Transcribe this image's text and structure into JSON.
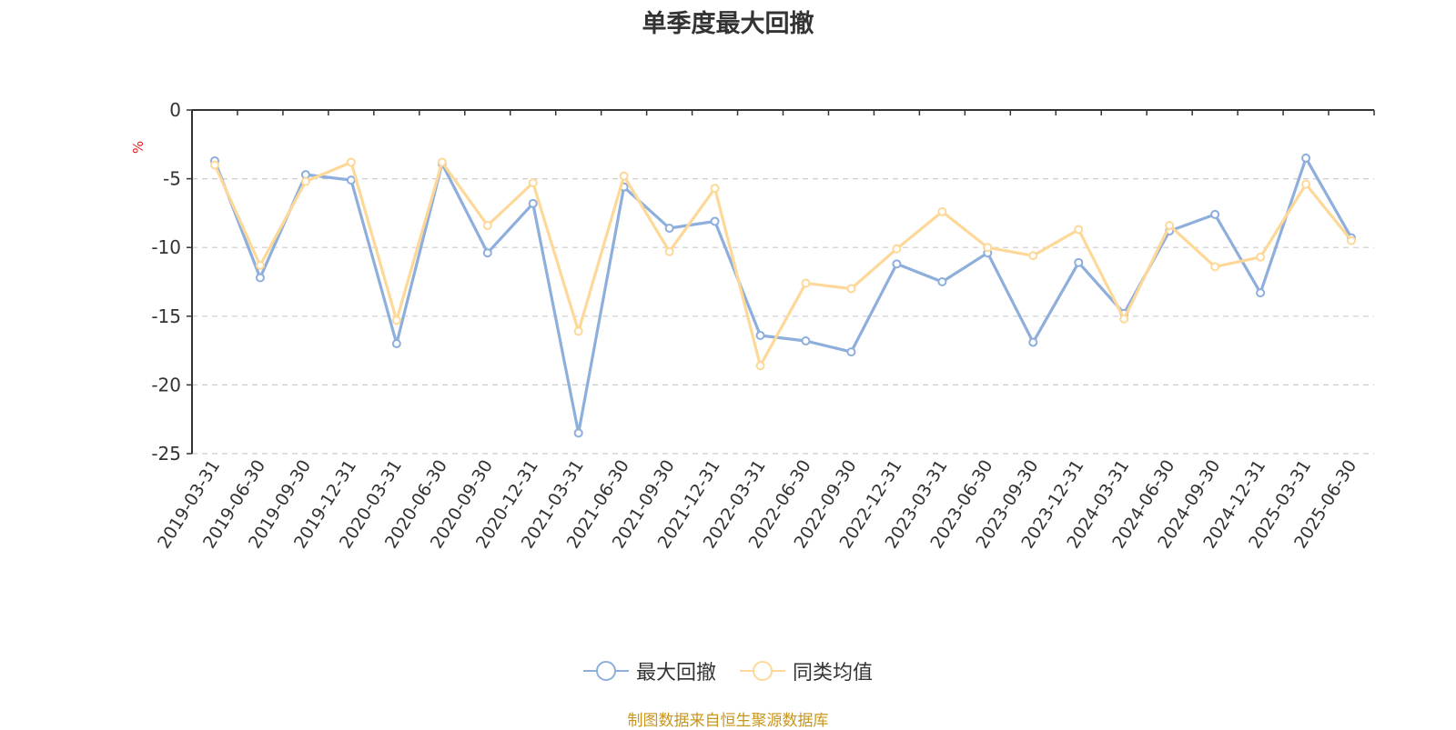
{
  "chart_data": {
    "type": "line",
    "title": "单季度最大回撤",
    "ylabel": "%",
    "xlabel": "",
    "ylim": [
      -25,
      0
    ],
    "yticks": [
      0,
      -5,
      -10,
      -15,
      -20,
      -25
    ],
    "grid": true,
    "legend_position": "bottom",
    "categories": [
      "2019-03-31",
      "2019-06-30",
      "2019-09-30",
      "2019-12-31",
      "2020-03-31",
      "2020-06-30",
      "2020-09-30",
      "2020-12-31",
      "2021-03-31",
      "2021-06-30",
      "2021-09-30",
      "2021-12-31",
      "2022-03-31",
      "2022-06-30",
      "2022-09-30",
      "2022-12-31",
      "2023-03-31",
      "2023-06-30",
      "2023-09-30",
      "2023-12-31",
      "2024-03-31",
      "2024-06-30",
      "2024-09-30",
      "2024-12-31",
      "2025-03-31",
      "2025-06-30"
    ],
    "series": [
      {
        "name": "最大回撤",
        "color": "#8eaedc",
        "values": [
          -3.7,
          -12.2,
          -4.7,
          -5.1,
          -17.0,
          -3.9,
          -10.4,
          -6.8,
          -23.5,
          -5.6,
          -8.6,
          -8.1,
          -16.4,
          -16.8,
          -17.6,
          -11.2,
          -12.5,
          -10.4,
          -16.9,
          -11.1,
          -14.8,
          -8.8,
          -7.6,
          -13.3,
          -3.5,
          -9.3
        ]
      },
      {
        "name": "同类均值",
        "color": "#fdd898",
        "values": [
          -4.0,
          -11.3,
          -5.2,
          -3.8,
          -15.3,
          -3.8,
          -8.4,
          -5.3,
          -16.1,
          -4.8,
          -10.3,
          -5.7,
          -18.6,
          -12.6,
          -13.0,
          -10.1,
          -7.4,
          -10.0,
          -10.6,
          -8.7,
          -15.2,
          -8.4,
          -11.4,
          -10.7,
          -5.4,
          -9.5
        ]
      }
    ]
  },
  "source_text": "制图数据来自恒生聚源数据库"
}
